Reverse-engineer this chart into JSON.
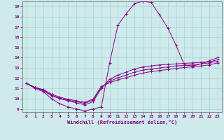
{
  "xlabel": "Windchill (Refroidissement éolien,°C)",
  "xlim": [
    -0.5,
    23.5
  ],
  "ylim": [
    8.7,
    19.5
  ],
  "xticks": [
    0,
    1,
    2,
    3,
    4,
    5,
    6,
    7,
    8,
    9,
    10,
    11,
    12,
    13,
    14,
    15,
    16,
    17,
    18,
    19,
    20,
    21,
    22,
    23
  ],
  "yticks": [
    9,
    10,
    11,
    12,
    13,
    14,
    15,
    16,
    17,
    18,
    19
  ],
  "bg_color": "#ceeaea",
  "line_color": "#880088",
  "grid_color": "#aad4d4",
  "spine_color": "#777777",
  "curves": [
    {
      "x": [
        0,
        1,
        2,
        3,
        4,
        5,
        6,
        7,
        8,
        9,
        10,
        11,
        12,
        13,
        14,
        15,
        16,
        17,
        18,
        19,
        20,
        21,
        22,
        23
      ],
      "y": [
        11.5,
        11.0,
        10.7,
        10.0,
        9.5,
        9.2,
        9.0,
        8.8,
        9.0,
        9.2,
        13.5,
        17.2,
        18.3,
        19.3,
        19.5,
        19.4,
        18.2,
        16.9,
        15.2,
        13.3,
        13.2,
        13.4,
        13.7,
        14.0
      ]
    },
    {
      "x": [
        0,
        1,
        2,
        3,
        4,
        5,
        6,
        7,
        8,
        9,
        10,
        11,
        12,
        13,
        14,
        15,
        16,
        17,
        18,
        19,
        20,
        21,
        22,
        23
      ],
      "y": [
        11.5,
        11.1,
        10.8,
        10.3,
        10.0,
        9.8,
        9.6,
        9.4,
        9.7,
        11.0,
        11.9,
        12.3,
        12.6,
        12.9,
        13.1,
        13.2,
        13.3,
        13.35,
        13.4,
        13.45,
        13.5,
        13.55,
        13.6,
        13.8
      ]
    },
    {
      "x": [
        0,
        1,
        2,
        3,
        4,
        5,
        6,
        7,
        8,
        9,
        10,
        11,
        12,
        13,
        14,
        15,
        16,
        17,
        18,
        19,
        20,
        21,
        22,
        23
      ],
      "y": [
        11.5,
        11.1,
        10.85,
        10.35,
        10.05,
        9.85,
        9.7,
        9.55,
        9.85,
        11.1,
        11.7,
        12.05,
        12.3,
        12.6,
        12.8,
        12.9,
        13.0,
        13.1,
        13.2,
        13.25,
        13.3,
        13.4,
        13.5,
        13.65
      ]
    },
    {
      "x": [
        0,
        1,
        2,
        3,
        4,
        5,
        6,
        7,
        8,
        9,
        10,
        11,
        12,
        13,
        14,
        15,
        16,
        17,
        18,
        19,
        20,
        21,
        22,
        23
      ],
      "y": [
        11.5,
        11.1,
        10.9,
        10.45,
        10.15,
        9.95,
        9.8,
        9.65,
        9.95,
        11.2,
        11.55,
        11.85,
        12.05,
        12.3,
        12.5,
        12.65,
        12.75,
        12.85,
        12.95,
        13.05,
        13.1,
        13.2,
        13.3,
        13.5
      ]
    }
  ]
}
